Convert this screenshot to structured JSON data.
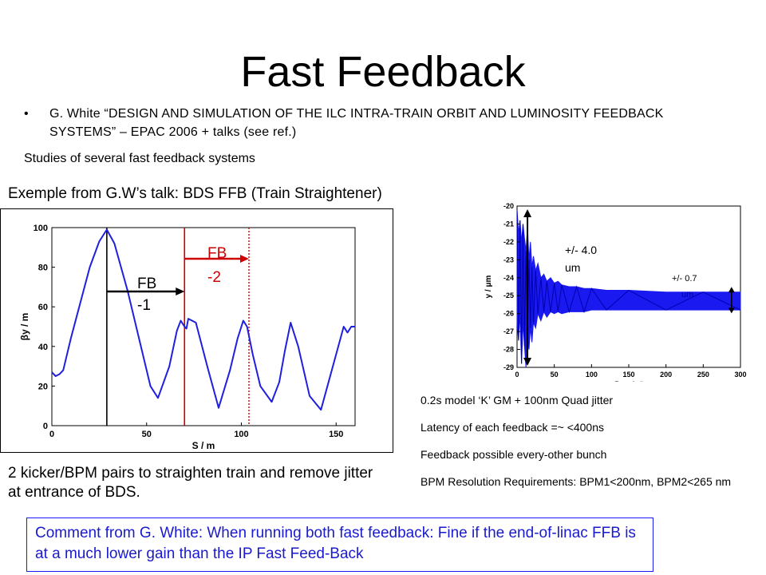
{
  "slide": {
    "title": "Fast Feedback",
    "bullet": "•",
    "bullet_text": "G. White “DESIGN AND SIMULATION OF THE ILC INTRA-TRAIN ORBIT AND LUMINOSITY FEEDBACK SYSTEMS” – EPAC 2006 + talks (see ref.)",
    "studies": "Studies of several fast feedback systems",
    "example_heading": "Exemple from G.W’s talk: BDS FFB (Train Straightener)",
    "caption": "2 kicker/BPM pairs to straighten train and remove jitter at entrance of BDS.",
    "notes": [
      "0.2s model ‘K’ GM + 100nm Quad jitter",
      "Latency of each feedback =~ <400ns",
      "Feedback possible every-other bunch",
      "BPM Resolution Requirements: BPM1<200nm, BPM2<265 nm"
    ],
    "comment": "Comment from G. White: When running both fast feedback: Fine if the end-of-linac FFB is at a much lower gain than the IP Fast Feed-Back"
  },
  "chart_data": [
    {
      "type": "line",
      "xlabel": "S / m",
      "ylabel": "βy / m",
      "xlim": [
        0,
        160
      ],
      "ylim": [
        0,
        100
      ],
      "x_ticks": [
        0,
        50,
        100,
        150
      ],
      "y_ticks": [
        0,
        20,
        40,
        60,
        80,
        100
      ],
      "x_tick_labels": [
        "0",
        "50",
        "100",
        "150"
      ],
      "y_tick_labels": [
        "0",
        "20",
        "40",
        "60",
        "80",
        "100"
      ],
      "series": [
        {
          "color": "#1f1fe0",
          "x": [
            0,
            2,
            4,
            6,
            10,
            15,
            20,
            25,
            29,
            33,
            40,
            46,
            52,
            56,
            62,
            66,
            68,
            70,
            71,
            72,
            76,
            82,
            88,
            94,
            98,
            101,
            103,
            106,
            110,
            116,
            120,
            123,
            126,
            130,
            136,
            142,
            146,
            150,
            154,
            156,
            158,
            160
          ],
          "y": [
            27,
            25,
            26,
            28,
            44,
            62,
            80,
            93,
            99,
            92,
            68,
            44,
            20,
            14,
            30,
            48,
            53,
            50,
            49,
            54,
            52,
            30,
            9,
            28,
            44,
            53,
            50,
            36,
            20,
            12,
            22,
            38,
            52,
            40,
            15,
            8,
            22,
            36,
            50,
            47,
            50,
            50
          ]
        }
      ],
      "markers": [
        {
          "x": 29,
          "color": "#000000",
          "style": "solid"
        },
        {
          "x": 70,
          "color": "#cc0000",
          "style": "solid"
        },
        {
          "x": 104,
          "color": "#cc0000",
          "style": "dotted"
        }
      ],
      "annotations": [
        {
          "text": "FB",
          "text2": "-1",
          "color": "#000000"
        },
        {
          "text": "FB",
          "text2": "-2",
          "color": "#cc0000"
        }
      ]
    },
    {
      "type": "line",
      "xlabel": "Bunch #",
      "ylabel": "y / μm",
      "xlim": [
        0,
        300
      ],
      "ylim": [
        -29,
        -20
      ],
      "x_ticks": [
        0,
        50,
        100,
        150,
        200,
        250,
        300
      ],
      "y_ticks": [
        -20,
        -21,
        -22,
        -23,
        -24,
        -25,
        -26,
        -27,
        -28,
        -29
      ],
      "x_tick_labels": [
        "0",
        "50",
        "100",
        "150",
        "200",
        "250",
        "300"
      ],
      "y_tick_labels": [
        "-20",
        "-21",
        "-22",
        "-23",
        "-24",
        "-25",
        "-26",
        "-27",
        "-28",
        "-29"
      ],
      "series": [
        {
          "color": "#1a1af0",
          "x": [
            0,
            2,
            4,
            6,
            8,
            10,
            12,
            14,
            16,
            18,
            20,
            22,
            25,
            28,
            32,
            36,
            40,
            45,
            50,
            55,
            60,
            70,
            80,
            90,
            100,
            120,
            150,
            200,
            250,
            300
          ],
          "upper": [
            -20.2,
            -21.5,
            -20.8,
            -22.0,
            -21.0,
            -21.8,
            -22.5,
            -21.2,
            -23.0,
            -22.0,
            -23.4,
            -22.8,
            -23.6,
            -23.2,
            -24.0,
            -23.8,
            -24.2,
            -24.0,
            -24.3,
            -24.2,
            -24.4,
            -24.5,
            -24.5,
            -24.6,
            -24.6,
            -24.7,
            -24.7,
            -24.8,
            -24.8,
            -24.8
          ],
          "lower": [
            -26.5,
            -27.5,
            -26.0,
            -28.8,
            -26.5,
            -27.8,
            -29.0,
            -27.5,
            -28.0,
            -26.8,
            -27.6,
            -26.5,
            -26.8,
            -26.0,
            -26.4,
            -25.9,
            -26.2,
            -25.9,
            -26.0,
            -25.9,
            -26.0,
            -25.9,
            -25.9,
            -25.9,
            -25.8,
            -25.8,
            -25.8,
            -25.8,
            -25.8,
            -25.8
          ]
        }
      ],
      "annotations": [
        {
          "text": "+/- 4.0",
          "text2": "um",
          "color": "#000000"
        },
        {
          "text": "+/- 0.7",
          "text2": "um",
          "color": "#000000"
        }
      ]
    }
  ]
}
